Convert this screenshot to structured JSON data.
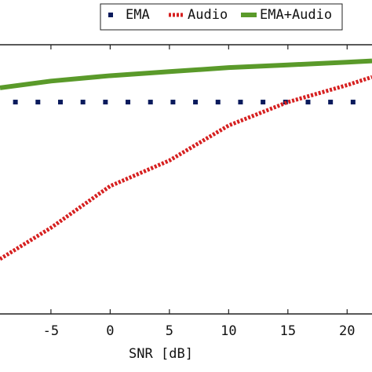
{
  "chart_data": {
    "type": "line",
    "xlabel": "SNR [dB]",
    "xlim": [
      -9.3,
      22.1
    ],
    "xticks": [
      -5,
      0,
      5,
      10,
      15,
      20
    ],
    "ylim": [
      0,
      100
    ],
    "legend": "top",
    "series": [
      {
        "name": "EMA",
        "color": "#0a1a5c",
        "style": "dotted-marker",
        "x": [
          -8,
          -6.1,
          -4.2,
          -2.3,
          -0.4,
          1.5,
          3.4,
          5.3,
          7.2,
          9.1,
          11,
          12.9,
          14.8,
          16.7,
          18.6,
          20.5
        ],
        "values": [
          78.7,
          78.7,
          78.7,
          78.7,
          78.7,
          78.7,
          78.7,
          78.7,
          78.7,
          78.7,
          78.7,
          78.7,
          78.7,
          78.7,
          78.7,
          78.7
        ]
      },
      {
        "name": "Audio",
        "color": "#d62020",
        "style": "dotted",
        "x": [
          -9.3,
          -5,
          0,
          5,
          10,
          15,
          20,
          22.1
        ],
        "values": [
          20.4,
          32,
          47.5,
          57,
          70,
          78.7,
          85,
          88
        ]
      },
      {
        "name": "EMA+Audio",
        "color": "#5a9a2a",
        "style": "solid",
        "x": [
          -9.3,
          -5,
          0,
          5,
          10,
          15,
          20,
          22.1
        ],
        "values": [
          84,
          86.5,
          88.5,
          90,
          91.5,
          92.5,
          93.5,
          94
        ]
      }
    ]
  }
}
